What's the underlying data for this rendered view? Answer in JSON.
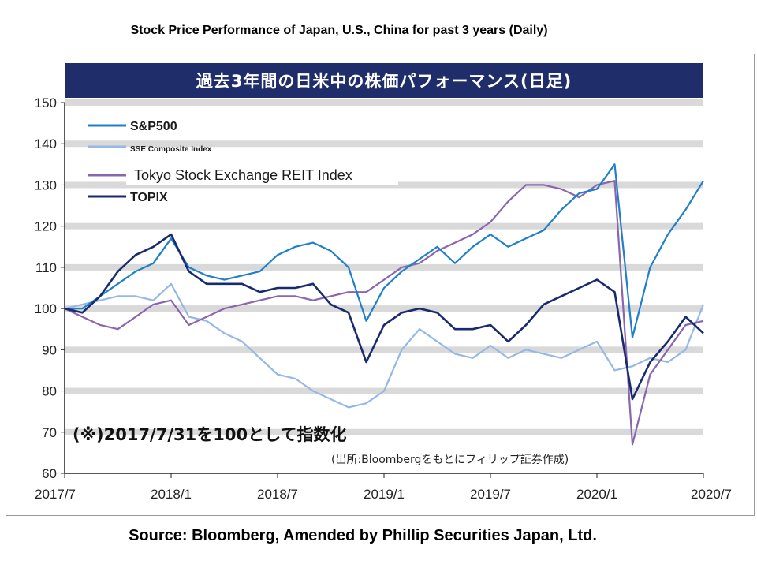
{
  "header": {
    "title": "Stock Price Performance of Japan, U.S., China for past 3 years (Daily)"
  },
  "footer": {
    "source": "Source: Bloomberg, Amended by Phillip Securities Japan, Ltd."
  },
  "chart_data": {
    "type": "line",
    "title": "過去3年間の日米中の株価パフォーマンス(日足)",
    "note": "(※)2017/7/31を100として指数化",
    "source_note": "(出所:Bloombergをもとにフィリップ証券作成)",
    "xlabel": "",
    "ylabel": "",
    "ylim": [
      60,
      150
    ],
    "yticks": [
      60,
      70,
      80,
      90,
      100,
      110,
      120,
      130,
      140,
      150
    ],
    "xlim": [
      "2017-07-31",
      "2020-07-31"
    ],
    "xtick_labels": [
      "2017/7",
      "2018/1",
      "2018/7",
      "2019/1",
      "2019/7",
      "2020/1",
      "2020/7"
    ],
    "grid": "horizontal striped",
    "legend": "top-left",
    "x": [
      "2017-07",
      "2017-08",
      "2017-09",
      "2017-10",
      "2017-11",
      "2017-12",
      "2018-01",
      "2018-02",
      "2018-03",
      "2018-04",
      "2018-05",
      "2018-06",
      "2018-07",
      "2018-08",
      "2018-09",
      "2018-10",
      "2018-11",
      "2018-12",
      "2019-01",
      "2019-02",
      "2019-03",
      "2019-04",
      "2019-05",
      "2019-06",
      "2019-07",
      "2019-08",
      "2019-09",
      "2019-10",
      "2019-11",
      "2019-12",
      "2020-01",
      "2020-02",
      "2020-03",
      "2020-04",
      "2020-05",
      "2020-06",
      "2020-07"
    ],
    "series": [
      {
        "name": "S&P500",
        "color": "#1f7fc9",
        "values": [
          100,
          100,
          103,
          106,
          109,
          111,
          117,
          110,
          108,
          107,
          108,
          109,
          113,
          115,
          116,
          114,
          110,
          97,
          105,
          109,
          112,
          115,
          111,
          115,
          118,
          115,
          117,
          119,
          124,
          128,
          129,
          135,
          93,
          110,
          118,
          124,
          131
        ]
      },
      {
        "name": "SSE Composite Index",
        "color": "#95b8e6",
        "values": [
          100,
          101,
          102,
          103,
          103,
          102,
          106,
          98,
          97,
          94,
          92,
          88,
          84,
          83,
          80,
          78,
          76,
          77,
          80,
          90,
          95,
          92,
          89,
          88,
          91,
          88,
          90,
          89,
          88,
          90,
          92,
          85,
          86,
          88,
          87,
          90,
          101
        ]
      },
      {
        "name": "Tokyo Stock Exchange REIT Index",
        "color": "#8a65b0",
        "values": [
          100,
          98,
          96,
          95,
          98,
          101,
          102,
          96,
          98,
          100,
          101,
          102,
          103,
          103,
          102,
          103,
          104,
          104,
          107,
          110,
          111,
          114,
          116,
          118,
          121,
          126,
          130,
          130,
          129,
          127,
          130,
          131,
          67,
          84,
          90,
          96,
          97
        ]
      },
      {
        "name": "TOPIX",
        "color": "#1a2a6e",
        "values": [
          100,
          99,
          103,
          109,
          113,
          115,
          118,
          109,
          106,
          106,
          106,
          104,
          105,
          105,
          106,
          101,
          99,
          87,
          96,
          99,
          100,
          99,
          95,
          95,
          96,
          92,
          96,
          101,
          103,
          105,
          107,
          104,
          78,
          87,
          92,
          98,
          94
        ]
      }
    ]
  }
}
